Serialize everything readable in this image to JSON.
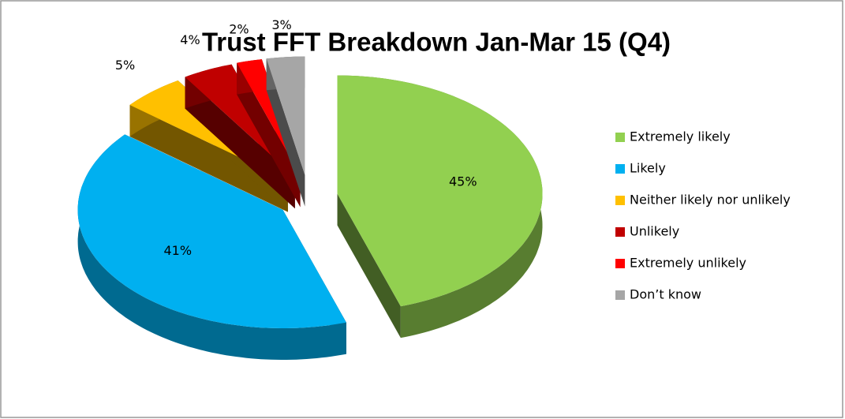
{
  "chart_data": {
    "type": "pie",
    "title": "Trust FFT Breakdown Jan-Mar 15 (Q4)",
    "categories": [
      "Extremely likely",
      "Likely",
      "Neither likely nor unlikely",
      "Unlikely",
      "Extremely unlikely",
      "Don’t know"
    ],
    "values": [
      45,
      41,
      5,
      4,
      2,
      3
    ],
    "value_labels": [
      "45%",
      "41%",
      "5%",
      "4%",
      "2%",
      "3%"
    ],
    "colors": [
      "#92d050",
      "#00b0f0",
      "#ffc000",
      "#c00000",
      "#ff0000",
      "#a6a6a6"
    ],
    "legend": "right"
  }
}
